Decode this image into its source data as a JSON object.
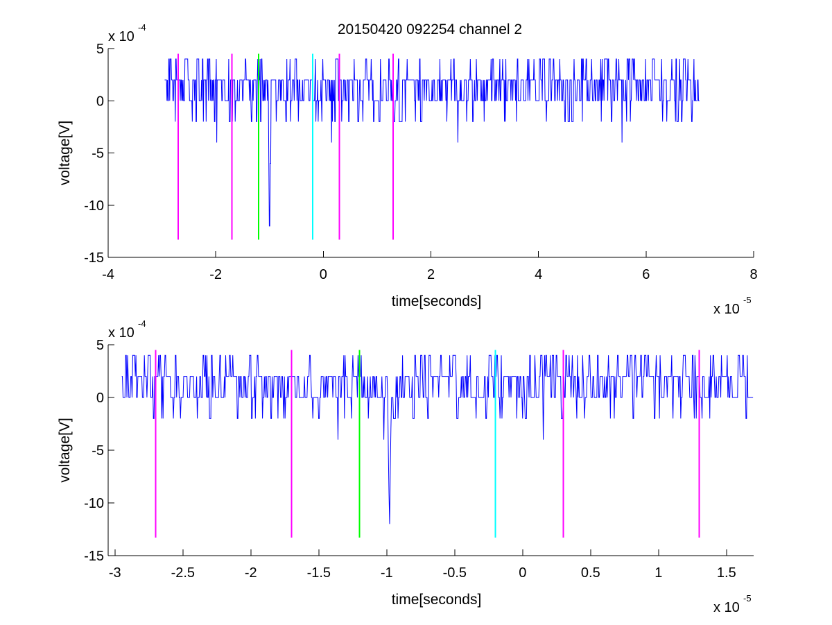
{
  "title": "20150420 092254 channel 2",
  "colors": {
    "signal": "#0000ff",
    "magenta": "#ff00ff",
    "green": "#00ff00",
    "cyan": "#00ffff",
    "axis": "#000000"
  },
  "chart_data": [
    {
      "type": "line",
      "title": "20150420 092254 channel 2",
      "xlabel": "time[seconds]",
      "ylabel": "voltage[V]",
      "x_multiplier": "x 10",
      "x_exponent": "-5",
      "y_multiplier": "x 10",
      "y_exponent": "-4",
      "xlim": [
        -4,
        8
      ],
      "ylim": [
        -15,
        5
      ],
      "x_ticks": [
        -4,
        -2,
        0,
        2,
        4,
        6,
        8
      ],
      "x_tick_labels": [
        "-4",
        "-2",
        "0",
        "2",
        "4",
        "6",
        "8"
      ],
      "y_ticks": [
        -15,
        -10,
        -5,
        0,
        5
      ],
      "y_tick_labels": [
        "-15",
        "-10",
        "-5",
        "0",
        "5"
      ],
      "grid": false,
      "series": [
        {
          "color": "#0000ff",
          "x_range": [
            -2.95,
            7.0
          ],
          "quantization_step": 2,
          "baseline_levels": [
            0,
            2
          ],
          "spikes": [
            {
              "x": -1.98,
              "y": -4
            },
            {
              "x": -1.0,
              "y": -12
            },
            {
              "x": -0.98,
              "y": -6
            },
            {
              "x": 0.15,
              "y": -4
            },
            {
              "x": 2.5,
              "y": -4
            },
            {
              "x": 5.55,
              "y": -4
            }
          ]
        }
      ],
      "vertical_markers": [
        {
          "x": -2.7,
          "color": "#ff00ff",
          "y_range": [
            -13.3,
            4.5
          ]
        },
        {
          "x": -1.7,
          "color": "#ff00ff",
          "y_range": [
            -13.3,
            4.5
          ]
        },
        {
          "x": -1.2,
          "color": "#00ff00",
          "y_range": [
            -13.3,
            4.5
          ]
        },
        {
          "x": -0.2,
          "color": "#00ffff",
          "y_range": [
            -13.3,
            4.5
          ]
        },
        {
          "x": 0.3,
          "color": "#ff00ff",
          "y_range": [
            -13.3,
            4.5
          ]
        },
        {
          "x": 1.3,
          "color": "#ff00ff",
          "y_range": [
            -13.3,
            4.5
          ]
        }
      ]
    },
    {
      "type": "line",
      "xlabel": "time[seconds]",
      "ylabel": "voltage[V]",
      "x_multiplier": "x 10",
      "x_exponent": "-5",
      "y_multiplier": "x 10",
      "y_exponent": "-4",
      "xlim": [
        -3.05,
        1.7
      ],
      "ylim": [
        -15,
        5
      ],
      "x_ticks": [
        -3,
        -2.5,
        -2,
        -1.5,
        -1,
        -0.5,
        0,
        0.5,
        1,
        1.5
      ],
      "x_tick_labels": [
        "-3",
        "-2.5",
        "-2",
        "-1.5",
        "-1",
        "-0.5",
        "0",
        "0.5",
        "1",
        "1.5"
      ],
      "y_ticks": [
        -15,
        -10,
        -5,
        0,
        5
      ],
      "y_tick_labels": [
        "-15",
        "-10",
        "-5",
        "0",
        "5"
      ],
      "grid": false,
      "series": [
        {
          "color": "#0000ff",
          "x_range": [
            -2.95,
            1.7
          ],
          "quantization_step": 2,
          "baseline_levels": [
            0,
            2
          ],
          "spikes": [
            {
              "x": -1.36,
              "y": -4
            },
            {
              "x": -1.02,
              "y": -4
            },
            {
              "x": -0.98,
              "y": -12
            },
            {
              "x": 0.15,
              "y": -4
            }
          ]
        }
      ],
      "vertical_markers": [
        {
          "x": -2.7,
          "color": "#ff00ff",
          "y_range": [
            -13.3,
            4.5
          ]
        },
        {
          "x": -1.7,
          "color": "#ff00ff",
          "y_range": [
            -13.3,
            4.5
          ]
        },
        {
          "x": -1.2,
          "color": "#00ff00",
          "y_range": [
            -13.3,
            4.5
          ]
        },
        {
          "x": -0.2,
          "color": "#00ffff",
          "y_range": [
            -13.3,
            4.5
          ]
        },
        {
          "x": 0.3,
          "color": "#ff00ff",
          "y_range": [
            -13.3,
            4.5
          ]
        },
        {
          "x": 1.3,
          "color": "#ff00ff",
          "y_range": [
            -13.3,
            4.5
          ]
        }
      ]
    }
  ]
}
